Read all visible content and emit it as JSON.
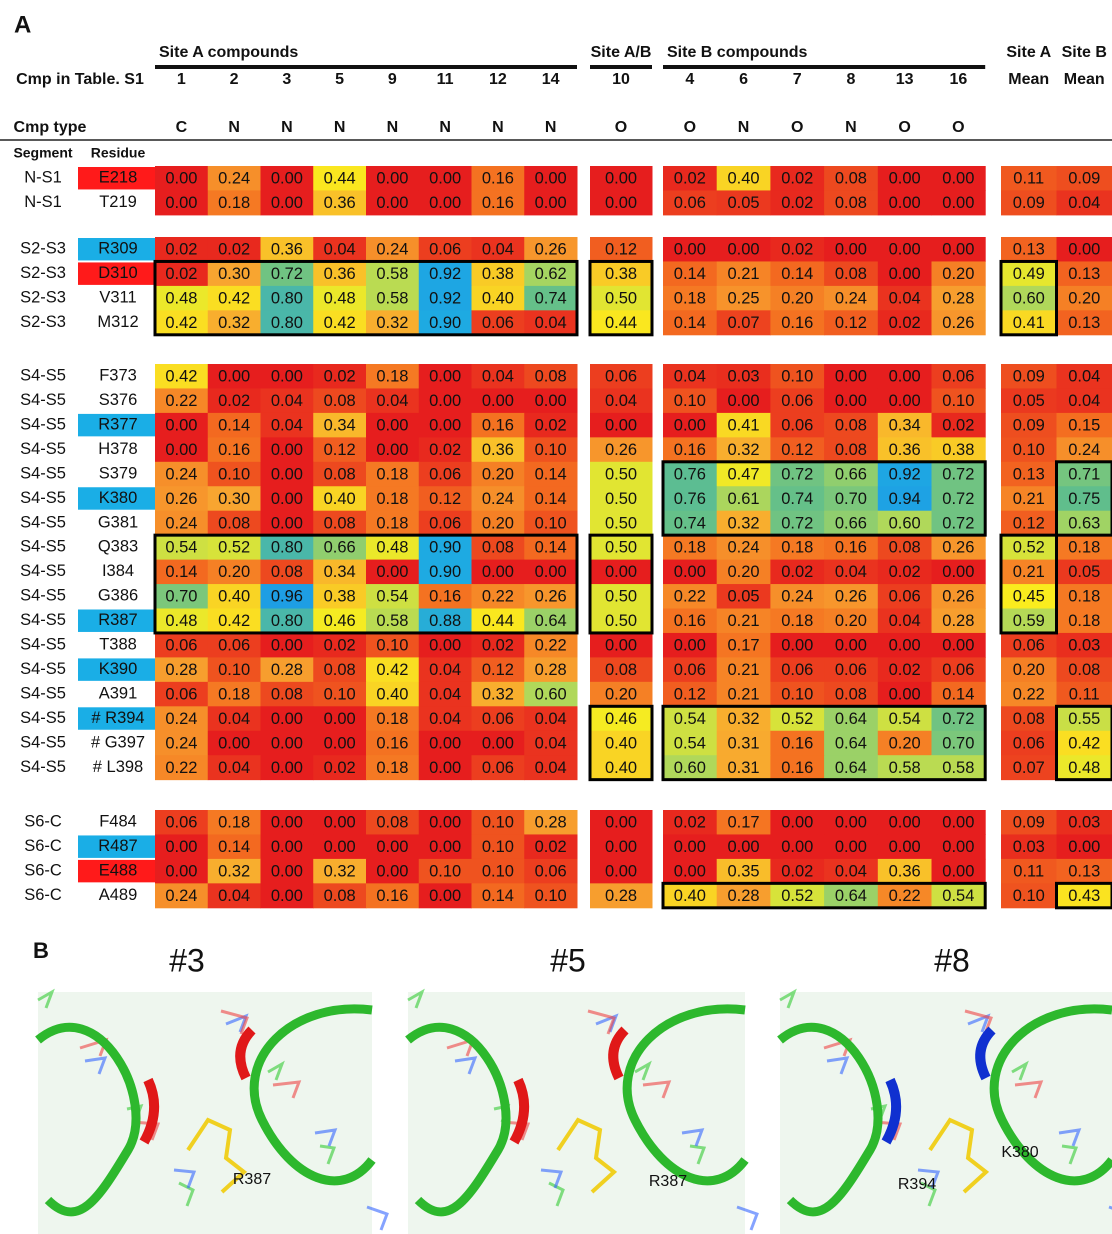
{
  "panel_a": {
    "label": "A",
    "row_header_label": "Cmp in Table. S1",
    "type_header_label": "Cmp type",
    "segment_label": "Segment",
    "residue_label": "Residue",
    "column_groups": [
      {
        "name": "Site A compounds",
        "compounds": [
          1,
          2,
          3,
          5,
          9,
          11,
          12,
          14
        ],
        "types": [
          "C",
          "N",
          "N",
          "N",
          "N",
          "N",
          "N",
          "N"
        ]
      },
      {
        "name": "Site A/B",
        "compounds": [
          10
        ],
        "types": [
          "O"
        ]
      },
      {
        "name": "Site B compounds",
        "compounds": [
          4,
          6,
          7,
          8,
          13,
          16
        ],
        "types": [
          "O",
          "N",
          "O",
          "N",
          "O",
          "O"
        ]
      }
    ],
    "mean_columns": [
      {
        "site": "Site A",
        "label": "Mean"
      },
      {
        "site": "Site B",
        "label": "Mean"
      }
    ],
    "groups": [
      {
        "rows": [
          {
            "segment": "N-S1",
            "residue": "E218",
            "highlight": "#ff1a1a",
            "values": [
              "0.00",
              "0.24",
              "0.00",
              "0.44",
              "0.00",
              "0.00",
              "0.16",
              "0.00",
              "0.00",
              "0.02",
              "0.40",
              "0.02",
              "0.08",
              "0.00",
              "0.00",
              "0.11",
              "0.09"
            ]
          },
          {
            "segment": "N-S1",
            "residue": "T219",
            "values": [
              "0.00",
              "0.18",
              "0.00",
              "0.36",
              "0.00",
              "0.00",
              "0.16",
              "0.00",
              "0.00",
              "0.06",
              "0.05",
              "0.02",
              "0.08",
              "0.00",
              "0.00",
              "0.09",
              "0.04"
            ]
          }
        ]
      },
      {
        "rows": [
          {
            "segment": "S2-S3",
            "residue": "R309",
            "highlight": "#1aaee6",
            "values": [
              "0.02",
              "0.02",
              "0.36",
              "0.04",
              "0.24",
              "0.06",
              "0.04",
              "0.26",
              "0.12",
              "0.00",
              "0.00",
              "0.02",
              "0.00",
              "0.00",
              "0.00",
              "0.13",
              "0.00"
            ]
          },
          {
            "segment": "S2-S3",
            "residue": "D310",
            "highlight": "#ff1a1a",
            "values": [
              "0.02",
              "0.30",
              "0.72",
              "0.36",
              "0.58",
              "0.92",
              "0.38",
              "0.62",
              "0.38",
              "0.14",
              "0.21",
              "0.14",
              "0.08",
              "0.00",
              "0.20",
              "0.49",
              "0.13"
            ]
          },
          {
            "segment": "S2-S3",
            "residue": "V311",
            "values": [
              "0.48",
              "0.42",
              "0.80",
              "0.48",
              "0.58",
              "0.92",
              "0.40",
              "0.74",
              "0.50",
              "0.18",
              "0.25",
              "0.20",
              "0.24",
              "0.04",
              "0.28",
              "0.60",
              "0.20"
            ]
          },
          {
            "segment": "S2-S3",
            "residue": "M312",
            "values": [
              "0.42",
              "0.32",
              "0.80",
              "0.42",
              "0.32",
              "0.90",
              "0.06",
              "0.04",
              "0.44",
              "0.14",
              "0.07",
              "0.16",
              "0.12",
              "0.02",
              "0.26",
              "0.41",
              "0.13"
            ]
          }
        ]
      },
      {
        "rows": [
          {
            "segment": "S4-S5",
            "residue": "F373",
            "values": [
              "0.42",
              "0.00",
              "0.00",
              "0.02",
              "0.18",
              "0.00",
              "0.04",
              "0.08",
              "0.06",
              "0.04",
              "0.03",
              "0.10",
              "0.00",
              "0.00",
              "0.06",
              "0.09",
              "0.04"
            ]
          },
          {
            "segment": "S4-S5",
            "residue": "S376",
            "values": [
              "0.22",
              "0.02",
              "0.04",
              "0.08",
              "0.04",
              "0.00",
              "0.00",
              "0.00",
              "0.04",
              "0.10",
              "0.00",
              "0.06",
              "0.00",
              "0.00",
              "0.10",
              "0.05",
              "0.04"
            ]
          },
          {
            "segment": "S4-S5",
            "residue": "R377",
            "highlight": "#1aaee6",
            "values": [
              "0.00",
              "0.14",
              "0.04",
              "0.34",
              "0.00",
              "0.00",
              "0.16",
              "0.02",
              "0.00",
              "0.00",
              "0.41",
              "0.06",
              "0.08",
              "0.34",
              "0.02",
              "0.09",
              "0.15"
            ]
          },
          {
            "segment": "S4-S5",
            "residue": "H378",
            "values": [
              "0.00",
              "0.16",
              "0.00",
              "0.12",
              "0.00",
              "0.02",
              "0.36",
              "0.10",
              "0.26",
              "0.16",
              "0.32",
              "0.12",
              "0.08",
              "0.36",
              "0.38",
              "0.10",
              "0.24"
            ]
          },
          {
            "segment": "S4-S5",
            "residue": "S379",
            "values": [
              "0.24",
              "0.10",
              "0.00",
              "0.08",
              "0.18",
              "0.06",
              "0.20",
              "0.14",
              "0.50",
              "0.76",
              "0.47",
              "0.72",
              "0.66",
              "0.92",
              "0.72",
              "0.13",
              "0.71"
            ]
          },
          {
            "segment": "S4-S5",
            "residue": "K380",
            "highlight": "#1aaee6",
            "values": [
              "0.26",
              "0.30",
              "0.00",
              "0.40",
              "0.18",
              "0.12",
              "0.24",
              "0.14",
              "0.50",
              "0.76",
              "0.61",
              "0.74",
              "0.70",
              "0.94",
              "0.72",
              "0.21",
              "0.75"
            ]
          },
          {
            "segment": "S4-S5",
            "residue": "G381",
            "values": [
              "0.24",
              "0.08",
              "0.00",
              "0.08",
              "0.18",
              "0.06",
              "0.20",
              "0.10",
              "0.50",
              "0.74",
              "0.32",
              "0.72",
              "0.66",
              "0.60",
              "0.72",
              "0.12",
              "0.63"
            ]
          },
          {
            "segment": "S4-S5",
            "residue": "Q383",
            "values": [
              "0.54",
              "0.52",
              "0.80",
              "0.66",
              "0.48",
              "0.90",
              "0.08",
              "0.14",
              "0.50",
              "0.18",
              "0.24",
              "0.18",
              "0.16",
              "0.08",
              "0.26",
              "0.52",
              "0.18"
            ]
          },
          {
            "segment": "S4-S5",
            "residue": "I384",
            "values": [
              "0.14",
              "0.20",
              "0.08",
              "0.34",
              "0.00",
              "0.90",
              "0.00",
              "0.00",
              "0.00",
              "0.00",
              "0.20",
              "0.02",
              "0.04",
              "0.02",
              "0.00",
              "0.21",
              "0.05"
            ]
          },
          {
            "segment": "S4-S5",
            "residue": "G386",
            "values": [
              "0.70",
              "0.40",
              "0.96",
              "0.38",
              "0.54",
              "0.16",
              "0.22",
              "0.26",
              "0.50",
              "0.22",
              "0.05",
              "0.24",
              "0.26",
              "0.06",
              "0.26",
              "0.45",
              "0.18"
            ]
          },
          {
            "segment": "S4-S5",
            "residue": "R387",
            "highlight": "#1aaee6",
            "values": [
              "0.48",
              "0.42",
              "0.80",
              "0.46",
              "0.58",
              "0.88",
              "0.44",
              "0.64",
              "0.50",
              "0.16",
              "0.21",
              "0.18",
              "0.20",
              "0.04",
              "0.28",
              "0.59",
              "0.18"
            ]
          },
          {
            "segment": "S4-S5",
            "residue": "T388",
            "values": [
              "0.06",
              "0.06",
              "0.00",
              "0.02",
              "0.10",
              "0.00",
              "0.02",
              "0.22",
              "0.00",
              "0.00",
              "0.17",
              "0.00",
              "0.00",
              "0.00",
              "0.00",
              "0.06",
              "0.03"
            ]
          },
          {
            "segment": "S4-S5",
            "residue": "K390",
            "highlight": "#1aaee6",
            "values": [
              "0.28",
              "0.10",
              "0.28",
              "0.08",
              "0.42",
              "0.04",
              "0.12",
              "0.28",
              "0.08",
              "0.06",
              "0.21",
              "0.06",
              "0.06",
              "0.02",
              "0.06",
              "0.20",
              "0.08"
            ]
          },
          {
            "segment": "S4-S5",
            "residue": "A391",
            "values": [
              "0.06",
              "0.18",
              "0.08",
              "0.10",
              "0.40",
              "0.04",
              "0.32",
              "0.60",
              "0.20",
              "0.12",
              "0.21",
              "0.10",
              "0.08",
              "0.00",
              "0.14",
              "0.22",
              "0.11"
            ]
          },
          {
            "segment": "S4-S5",
            "residue": "# R394",
            "highlight": "#1aaee6",
            "values": [
              "0.24",
              "0.04",
              "0.00",
              "0.00",
              "0.18",
              "0.04",
              "0.06",
              "0.04",
              "0.46",
              "0.54",
              "0.32",
              "0.52",
              "0.64",
              "0.54",
              "0.72",
              "0.08",
              "0.55"
            ]
          },
          {
            "segment": "S4-S5",
            "residue": "# G397",
            "values": [
              "0.24",
              "0.00",
              "0.00",
              "0.00",
              "0.16",
              "0.00",
              "0.00",
              "0.04",
              "0.40",
              "0.54",
              "0.31",
              "0.16",
              "0.64",
              "0.20",
              "0.70",
              "0.06",
              "0.42"
            ]
          },
          {
            "segment": "S4-S5",
            "residue": "# L398",
            "values": [
              "0.22",
              "0.04",
              "0.00",
              "0.02",
              "0.18",
              "0.00",
              "0.06",
              "0.04",
              "0.40",
              "0.60",
              "0.31",
              "0.16",
              "0.64",
              "0.58",
              "0.58",
              "0.07",
              "0.48"
            ]
          }
        ]
      },
      {
        "rows": [
          {
            "segment": "S6-C",
            "residue": "F484",
            "values": [
              "0.06",
              "0.18",
              "0.00",
              "0.00",
              "0.08",
              "0.00",
              "0.10",
              "0.28",
              "0.00",
              "0.02",
              "0.17",
              "0.00",
              "0.00",
              "0.00",
              "0.00",
              "0.09",
              "0.03"
            ]
          },
          {
            "segment": "S6-C",
            "residue": "R487",
            "highlight": "#1aaee6",
            "values": [
              "0.00",
              "0.14",
              "0.00",
              "0.00",
              "0.00",
              "0.00",
              "0.10",
              "0.02",
              "0.00",
              "0.00",
              "0.00",
              "0.00",
              "0.00",
              "0.00",
              "0.00",
              "0.03",
              "0.00"
            ]
          },
          {
            "segment": "S6-C",
            "residue": "E488",
            "highlight": "#ff1a1a",
            "values": [
              "0.00",
              "0.32",
              "0.00",
              "0.32",
              "0.00",
              "0.10",
              "0.10",
              "0.06",
              "0.00",
              "0.00",
              "0.35",
              "0.02",
              "0.04",
              "0.36",
              "0.00",
              "0.11",
              "0.13"
            ]
          },
          {
            "segment": "S6-C",
            "residue": "A489",
            "values": [
              "0.24",
              "0.04",
              "0.00",
              "0.08",
              "0.16",
              "0.00",
              "0.14",
              "0.10",
              "0.28",
              "0.40",
              "0.28",
              "0.52",
              "0.64",
              "0.22",
              "0.54",
              "0.10",
              "0.43"
            ]
          }
        ]
      }
    ]
  },
  "panel_b": {
    "label": "B",
    "images": [
      {
        "title": "#3",
        "labels": [
          "R387"
        ]
      },
      {
        "title": "#5",
        "labels": [
          "R387"
        ]
      },
      {
        "title": "#8",
        "labels": [
          "R394",
          "K380"
        ]
      }
    ]
  }
}
